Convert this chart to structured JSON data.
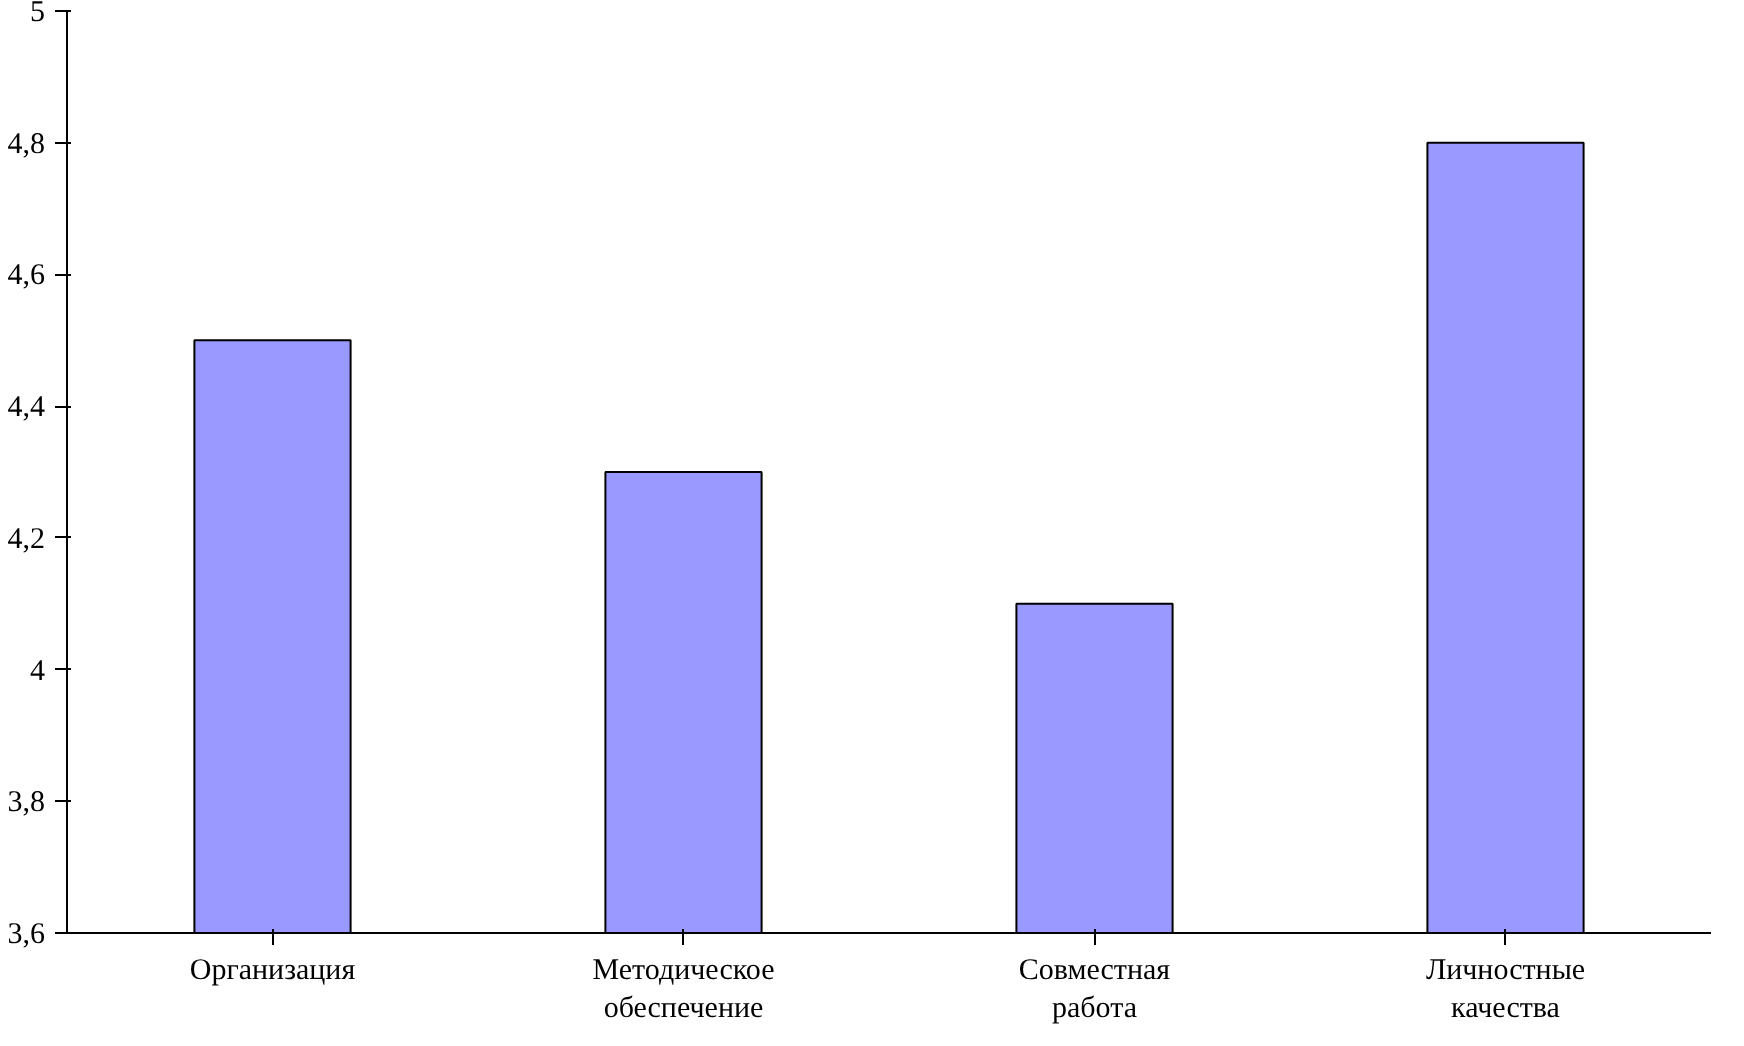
{
  "chart_data": {
    "type": "bar",
    "categories": [
      "Организация",
      "Методическое\nобеспечение",
      "Совместная\nработа",
      "Личностные\nкачества"
    ],
    "values": [
      4.5,
      4.3,
      4.1,
      4.8
    ],
    "color": "#9999ff",
    "ylim": [
      3.6,
      5
    ],
    "yticks": [
      {
        "value": 3.6,
        "label": "3,6"
      },
      {
        "value": 3.8,
        "label": "3,8"
      },
      {
        "value": 4,
        "label": "4"
      },
      {
        "value": 4.2,
        "label": "4,2"
      },
      {
        "value": 4.4,
        "label": "4,4"
      },
      {
        "value": 4.6,
        "label": "4,6"
      },
      {
        "value": 4.8,
        "label": "4,8"
      },
      {
        "value": 5,
        "label": "5"
      }
    ],
    "grid": false
  }
}
